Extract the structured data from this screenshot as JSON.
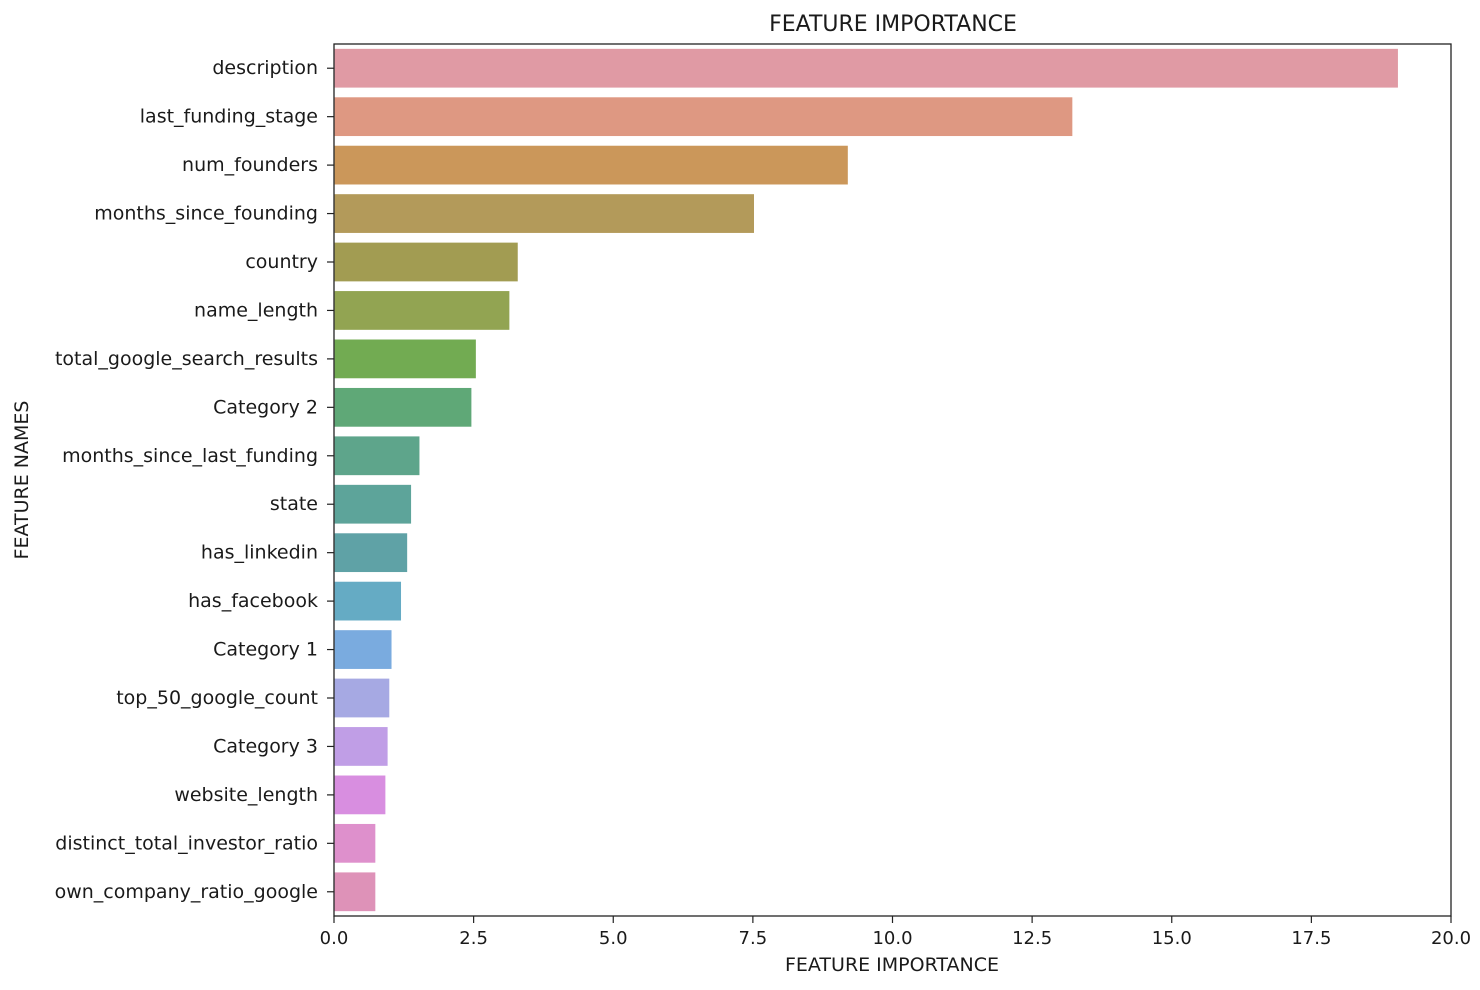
{
  "chart_data": {
    "type": "bar",
    "orientation": "horizontal",
    "title": "FEATURE IMPORTANCE",
    "xlabel": "FEATURE IMPORTANCE",
    "ylabel": "FEATURE NAMES",
    "xlim": [
      0,
      20
    ],
    "xticks": [
      "0.0",
      "2.5",
      "5.0",
      "7.5",
      "10.0",
      "12.5",
      "15.0",
      "17.5",
      "20.0"
    ],
    "grid": false,
    "categories": [
      "description",
      "last_funding_stage",
      "num_founders",
      "months_since_founding",
      "country",
      "name_length",
      "total_google_search_results",
      "Category 2",
      "months_since_last_funding",
      "state",
      "has_linkedin",
      "has_facebook",
      "Category 1",
      "top_50_google_count",
      "Category 3",
      "website_length",
      "distinct_total_investor_ratio",
      "own_company_ratio_google"
    ],
    "values": [
      19.05,
      13.22,
      9.2,
      7.52,
      3.29,
      3.14,
      2.54,
      2.46,
      1.53,
      1.38,
      1.31,
      1.2,
      1.03,
      0.99,
      0.96,
      0.92,
      0.74,
      0.74
    ],
    "colors": [
      "#e09aa4",
      "#de9882",
      "#cb975a",
      "#b39a5a",
      "#a29c52",
      "#92a452",
      "#72ab52",
      "#5fa877",
      "#5ea58b",
      "#5da49a",
      "#5fa2a6",
      "#65abc4",
      "#7aabdf",
      "#a6a9e3",
      "#c09ee6",
      "#d88ee0",
      "#de90cc",
      "#de92b8"
    ]
  }
}
